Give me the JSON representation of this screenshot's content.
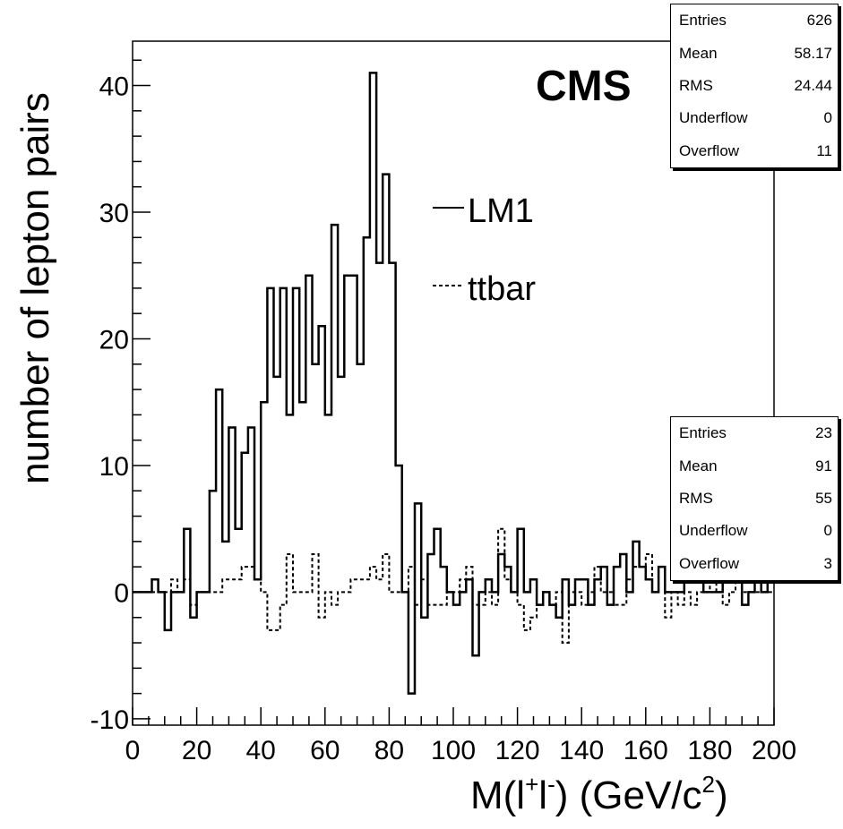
{
  "chart_data": {
    "type": "histogram",
    "xlabel_main": "M(l",
    "xlabel_sup1": "+",
    "xlabel_mid": "l",
    "xlabel_sup2": "-",
    "xlabel_tail": ") (GeV/c",
    "xlabel_sup3": "2",
    "xlabel_end": ")",
    "ylabel": "number of lepton pairs",
    "xlim": [
      0,
      200
    ],
    "ylim": [
      -10.5,
      43.5
    ],
    "xticks": [
      "0",
      "20",
      "40",
      "60",
      "80",
      "100",
      "120",
      "140",
      "160",
      "180",
      "200"
    ],
    "yticks": [
      "-10",
      "0",
      "10",
      "20",
      "30",
      "40"
    ],
    "bin_width": 2,
    "annotation": "CMS",
    "legend": [
      {
        "label": "LM1",
        "style": "solid"
      },
      {
        "label": "ttbar",
        "style": "dashed"
      }
    ],
    "series": [
      {
        "name": "LM1",
        "style": "solid",
        "values": [
          0,
          0,
          0,
          1,
          0,
          -3,
          0,
          0,
          5,
          -2,
          0,
          0,
          8,
          16,
          4,
          13,
          5,
          11,
          13,
          1,
          15,
          24,
          17,
          24,
          14,
          24,
          15,
          25,
          18,
          21,
          14,
          29,
          17,
          25,
          25,
          18,
          28,
          41,
          26,
          33,
          26,
          10,
          0,
          -8,
          7,
          -2,
          3,
          5,
          2,
          0,
          -1,
          0,
          1,
          -5,
          0,
          1,
          0,
          3,
          2,
          0,
          5,
          0,
          1,
          -1,
          0,
          -1,
          -2,
          1,
          -1,
          1,
          1,
          -1,
          1,
          2,
          -1,
          2,
          3,
          0,
          4,
          2,
          1,
          0,
          2,
          0,
          0,
          0,
          1,
          1,
          1,
          0,
          0,
          0,
          1,
          1,
          1,
          -1,
          0,
          1,
          0,
          1
        ]
      },
      {
        "name": "ttbar",
        "style": "dashed",
        "values": [
          0,
          0,
          0,
          0,
          0,
          0,
          1,
          0,
          1,
          -1,
          0,
          0,
          0,
          0,
          1,
          1,
          1,
          2,
          2,
          1,
          0,
          -3,
          -3,
          -1,
          3,
          0,
          0,
          0,
          3,
          -2,
          0,
          -1,
          0,
          0,
          1,
          1,
          1,
          2,
          1,
          3,
          0,
          0,
          0,
          2,
          -1,
          1,
          -1,
          -1,
          -1,
          0,
          0,
          1,
          2,
          -1,
          -1,
          0,
          -1,
          5,
          1,
          0,
          -1,
          -3,
          -2,
          -1,
          0,
          -1,
          0,
          -4,
          0,
          0,
          -1,
          0,
          2,
          0,
          0,
          -1,
          -1,
          1,
          2,
          2,
          3,
          0,
          2,
          -2,
          0,
          -1,
          0,
          -1,
          0,
          0,
          1,
          0,
          -1,
          0,
          1,
          0,
          0,
          0,
          0,
          0
        ]
      }
    ],
    "stats": [
      {
        "Entries": "626",
        "Mean": "58.17",
        "RMS": "24.44",
        "Underflow": "0",
        "Overflow": "11"
      },
      {
        "Entries": "23",
        "Mean": "91",
        "RMS": "55",
        "Underflow": "0",
        "Overflow": "3"
      }
    ]
  },
  "stats_labels": [
    "Entries",
    "Mean",
    "RMS",
    "Underflow",
    "Overflow"
  ]
}
